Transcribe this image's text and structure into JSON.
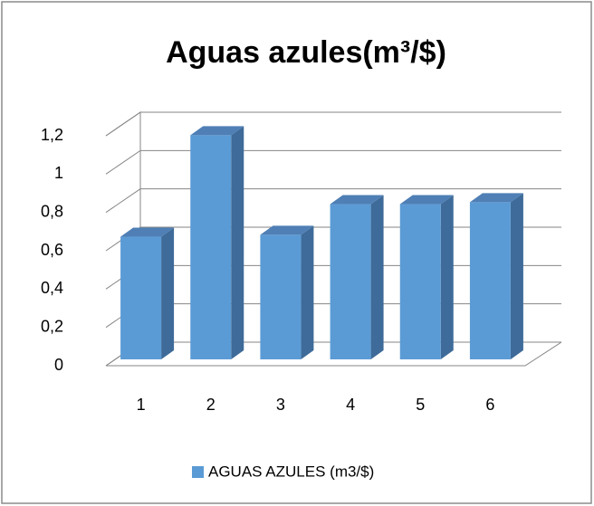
{
  "chart_data": {
    "type": "bar3d",
    "title": "Aguas azules(m³/$)",
    "categories": [
      "1",
      "2",
      "3",
      "4",
      "5",
      "6"
    ],
    "series": [
      {
        "name": "AGUAS AZULES (m3/$)",
        "color": "#5b9bd5",
        "values": [
          0.64,
          1.17,
          0.65,
          0.81,
          0.81,
          0.82
        ]
      }
    ],
    "ylim": [
      0,
      1.2
    ],
    "yticks": [
      0,
      {
        "value": 0.2,
        "label": "0,2"
      },
      {
        "value": 0.4,
        "label": "0,4"
      },
      {
        "value": 0.6,
        "label": "0,6"
      },
      {
        "value": 0.8,
        "label": "0,8"
      },
      1,
      {
        "value": 1.2,
        "label": "1,2"
      }
    ],
    "grid": true,
    "legend": "bottom"
  }
}
